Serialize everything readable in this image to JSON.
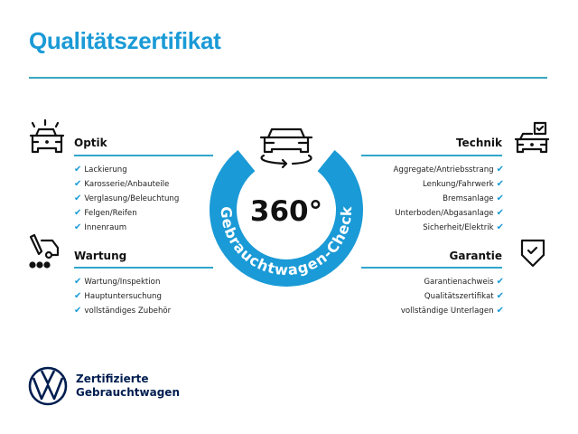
{
  "title": "Qualitätszertifikat",
  "badge": {
    "value": "360°",
    "arc_text": "Gebrauchtwagen-Check",
    "color": "#1a9ad6"
  },
  "sections": {
    "optik": {
      "title": "Optik",
      "icon": "car-lights-icon",
      "items": [
        "Lackierung",
        "Karosserie/Anbauteile",
        "Verglasung/Beleuchtung",
        "Felgen/Reifen",
        "Innenraum"
      ]
    },
    "wartung": {
      "title": "Wartung",
      "icon": "service-tools-icon",
      "items": [
        "Wartung/Inspektion",
        "Hauptuntersuchung",
        "vollständiges Zubehör"
      ]
    },
    "technik": {
      "title": "Technik",
      "icon": "car-checkbox-icon",
      "items": [
        "Aggregate/Antriebsstrang",
        "Lenkung/Fahrwerk",
        "Bremsanlage",
        "Unterboden/Abgasanlage",
        "Sicherheit/Elektrik"
      ]
    },
    "garantie": {
      "title": "Garantie",
      "icon": "shield-check-icon",
      "items": [
        "Garantienachweis",
        "Qualitätszertifikat",
        "vollständige Unterlagen"
      ]
    }
  },
  "check_mark": "✔",
  "logo": {
    "brand": "VW",
    "line1": "Zertifizierte",
    "line2": "Gebrauchtwagen",
    "color": "#001e50"
  },
  "colors": {
    "accent": "#1a9ad6",
    "line": "#3aa8c0"
  }
}
